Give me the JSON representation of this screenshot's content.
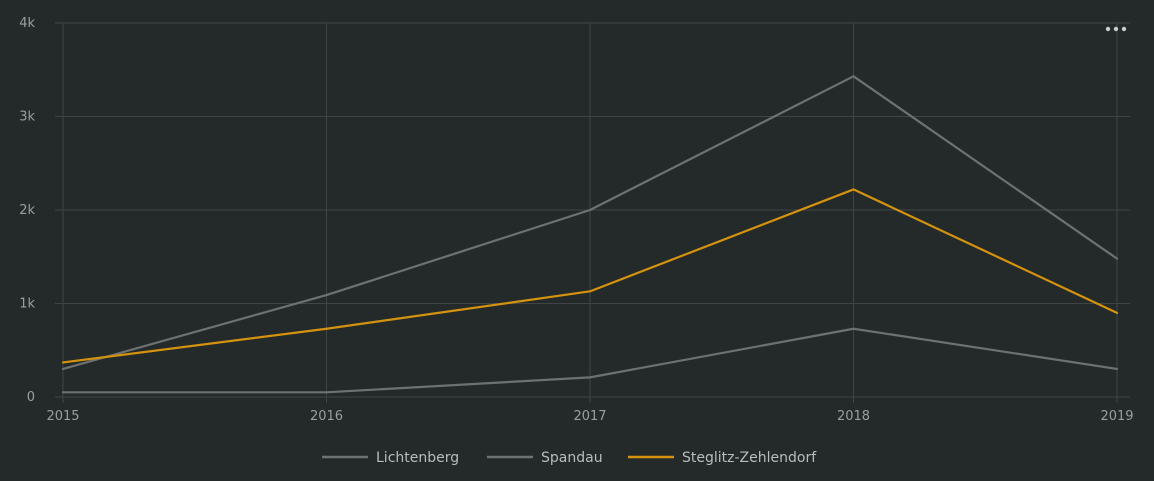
{
  "chart_data": {
    "type": "line",
    "x": [
      "2015",
      "2016",
      "2017",
      "2018",
      "2019"
    ],
    "series": [
      {
        "name": "Lichtenberg",
        "values": [
          300,
          1090,
          2000,
          3430,
          1480
        ],
        "color": "#6e7171"
      },
      {
        "name": "Spandau",
        "values": [
          50,
          50,
          210,
          730,
          300
        ],
        "color": "#6e7171"
      },
      {
        "name": "Steglitz-Zehlendorf",
        "values": [
          370,
          730,
          1130,
          2220,
          900
        ],
        "color": "#d4920e"
      }
    ],
    "y_ticks": [
      {
        "value": 0,
        "label": "0"
      },
      {
        "value": 1000,
        "label": "1k"
      },
      {
        "value": 2000,
        "label": "2k"
      },
      {
        "value": 3000,
        "label": "3k"
      },
      {
        "value": 4000,
        "label": "4k"
      }
    ],
    "ylim": [
      0,
      4000
    ],
    "grid": true,
    "legend_position": "bottom-center",
    "title": "",
    "xlabel": "",
    "ylabel": ""
  },
  "colors": {
    "background": "#242a2a",
    "grid": "#3f4545",
    "axis_text": "#9a9e9e",
    "legend_text": "#b8bcbc"
  },
  "menu_icon": "ellipsis-icon"
}
